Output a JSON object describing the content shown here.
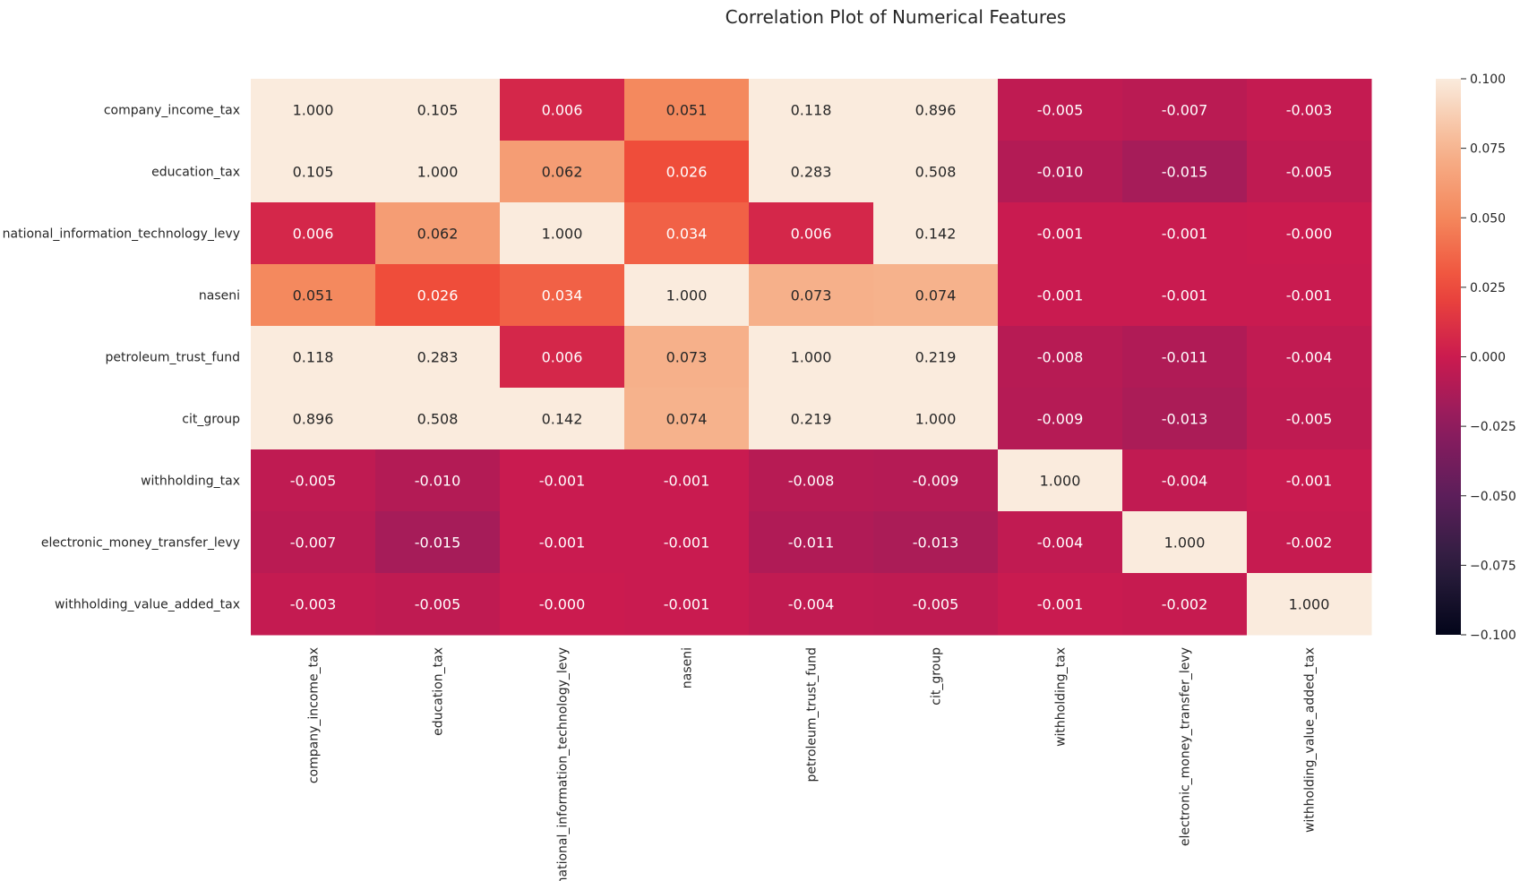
{
  "chart_data": {
    "type": "heatmap",
    "title": "Correlation Plot of Numerical Features",
    "xlabel": "",
    "ylabel": "",
    "rows": [
      "company_income_tax",
      "education_tax",
      "national_information_technology_levy",
      "naseni",
      "petroleum_trust_fund",
      "cit_group",
      "withholding_tax",
      "electronic_money_transfer_levy",
      "withholding_value_added_tax"
    ],
    "columns": [
      "company_income_tax",
      "education_tax",
      "national_information_technology_levy",
      "naseni",
      "petroleum_trust_fund",
      "cit_group",
      "withholding_tax",
      "electronic_money_transfer_levy",
      "withholding_value_added_tax"
    ],
    "values": [
      [
        1.0,
        0.105,
        0.006,
        0.051,
        0.118,
        0.896,
        -0.005,
        -0.007,
        -0.003
      ],
      [
        0.105,
        1.0,
        0.062,
        0.026,
        0.283,
        0.508,
        -0.01,
        -0.015,
        -0.005
      ],
      [
        0.006,
        0.062,
        1.0,
        0.034,
        0.006,
        0.142,
        -0.001,
        -0.001,
        -0.0
      ],
      [
        0.051,
        0.026,
        0.034,
        1.0,
        0.073,
        0.074,
        -0.001,
        -0.001,
        -0.001
      ],
      [
        0.118,
        0.283,
        0.006,
        0.073,
        1.0,
        0.219,
        -0.008,
        -0.011,
        -0.004
      ],
      [
        0.896,
        0.508,
        0.142,
        0.074,
        0.219,
        1.0,
        -0.009,
        -0.013,
        -0.005
      ],
      [
        -0.005,
        -0.01,
        -0.001,
        -0.001,
        -0.008,
        -0.009,
        1.0,
        -0.004,
        -0.001
      ],
      [
        -0.007,
        -0.015,
        -0.001,
        -0.001,
        -0.011,
        -0.013,
        -0.004,
        1.0,
        -0.002
      ],
      [
        -0.003,
        -0.005,
        -0.0,
        -0.001,
        -0.004,
        -0.005,
        -0.001,
        -0.002,
        1.0
      ]
    ],
    "annotation_format": "0.000",
    "color_range": [
      -0.1,
      0.1
    ],
    "colorbar": {
      "placement": "right",
      "ticks": [
        0.1,
        0.075,
        0.05,
        0.025,
        0.0,
        -0.025,
        -0.05,
        -0.075,
        -0.1
      ],
      "tick_labels": [
        "0.100",
        "0.075",
        "0.050",
        "0.025",
        "0.000",
        "−0.025",
        "−0.050",
        "−0.075",
        "−0.100"
      ]
    },
    "colormap": [
      "#03051a",
      "#2c1e3e",
      "#5c1e5a",
      "#8e1c5f",
      "#cb1b4f",
      "#ef4b39",
      "#f4875c",
      "#f6b48e",
      "#faebdd"
    ],
    "grid": false,
    "x_tick_rotation": "vertical"
  }
}
